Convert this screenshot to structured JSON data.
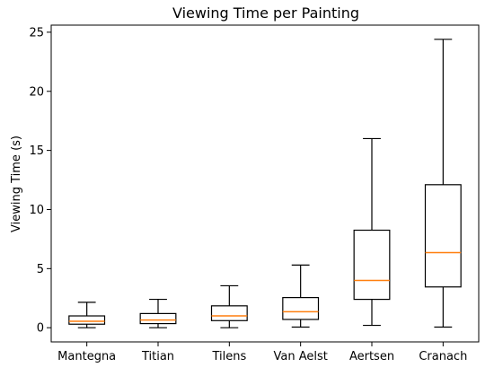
{
  "chart_data": {
    "type": "box",
    "title": "Viewing Time per Painting",
    "xlabel": "",
    "ylabel": "Viewing Time (s)",
    "ylim": [
      -1.2,
      25.6
    ],
    "yticks": [
      0,
      5,
      10,
      15,
      20,
      25
    ],
    "grid": false,
    "categories": [
      "Mantegna",
      "Titian",
      "Tilens",
      "Van Aelst",
      "Aertsen",
      "Cranach"
    ],
    "boxes": [
      {
        "whisker_low": 0.0,
        "q1": 0.3,
        "median": 0.55,
        "q3": 1.0,
        "whisker_high": 2.15
      },
      {
        "whisker_low": 0.0,
        "q1": 0.35,
        "median": 0.65,
        "q3": 1.2,
        "whisker_high": 2.4
      },
      {
        "whisker_low": 0.0,
        "q1": 0.6,
        "median": 1.0,
        "q3": 1.85,
        "whisker_high": 3.55
      },
      {
        "whisker_low": 0.05,
        "q1": 0.7,
        "median": 1.35,
        "q3": 2.55,
        "whisker_high": 5.3
      },
      {
        "whisker_low": 0.2,
        "q1": 2.4,
        "median": 4.0,
        "q3": 8.25,
        "whisker_high": 16.0
      },
      {
        "whisker_low": 0.05,
        "q1": 3.45,
        "median": 6.35,
        "q3": 12.1,
        "whisker_high": 24.4
      }
    ],
    "colors": {
      "box": "#000000",
      "median": "#ff7f0e"
    }
  }
}
